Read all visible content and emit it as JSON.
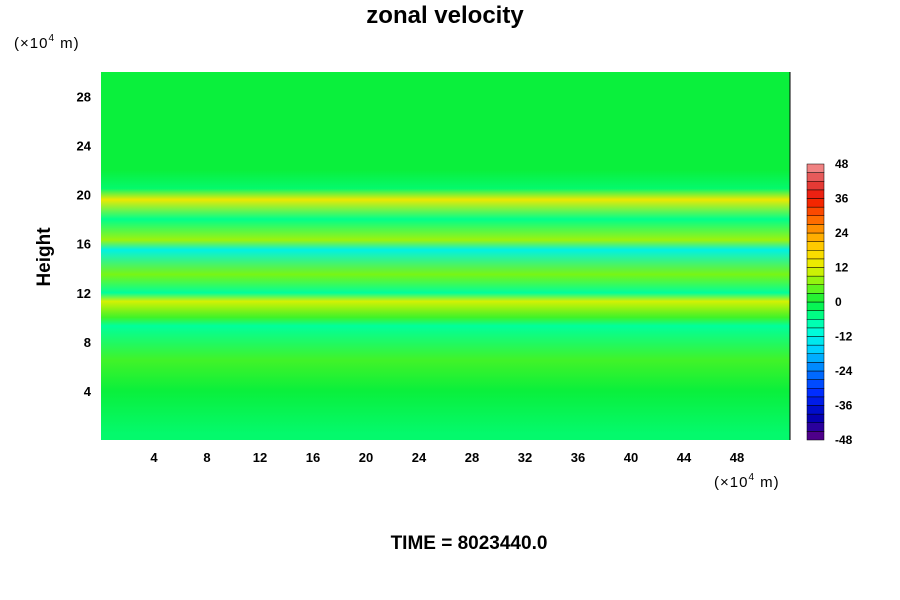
{
  "chart_data": {
    "type": "heatmap",
    "title": "zonal velocity",
    "ylabel": "Height",
    "xlabel": "",
    "x_unit": {
      "prefix": "(×10",
      "exp": "4",
      "suffix": " m)"
    },
    "y_unit": {
      "prefix": "(×10",
      "exp": "4",
      "suffix": " m)"
    },
    "xlim": [
      0,
      52
    ],
    "ylim": [
      0,
      30
    ],
    "x_ticks": [
      "4",
      "8",
      "12",
      "16",
      "20",
      "24",
      "28",
      "32",
      "36",
      "40",
      "44",
      "48"
    ],
    "x_tick_values": [
      4,
      8,
      12,
      16,
      20,
      24,
      28,
      32,
      36,
      40,
      44,
      48
    ],
    "y_ticks": [
      "4",
      "8",
      "12",
      "16",
      "20",
      "24",
      "28"
    ],
    "y_tick_values": [
      4,
      8,
      12,
      16,
      20,
      24,
      28
    ],
    "colorbar": {
      "min": -48,
      "max": 48,
      "step": 3,
      "ticks": [
        "48",
        "36",
        "24",
        "12",
        "0",
        "-12",
        "-24",
        "-36",
        "-48"
      ],
      "tick_values": [
        48,
        36,
        24,
        12,
        0,
        -12,
        -24,
        -36,
        -48
      ]
    },
    "field_profile": [
      {
        "y": 0.5,
        "value": -3
      },
      {
        "y": 4,
        "value": 0
      },
      {
        "y": 6.5,
        "value": 3
      },
      {
        "y": 9.3,
        "value": -6
      },
      {
        "y": 10,
        "value": 3
      },
      {
        "y": 11.3,
        "value": 11
      },
      {
        "y": 12,
        "value": -6
      },
      {
        "y": 13.5,
        "value": 6
      },
      {
        "y": 15.5,
        "value": -12
      },
      {
        "y": 16.3,
        "value": 8
      },
      {
        "y": 18,
        "value": -5
      },
      {
        "y": 19.6,
        "value": 14
      },
      {
        "y": 20.5,
        "value": -3
      },
      {
        "y": 22,
        "value": 0
      },
      {
        "y": 29,
        "value": 0
      }
    ],
    "annotation": "TIME = 8023440.0"
  }
}
